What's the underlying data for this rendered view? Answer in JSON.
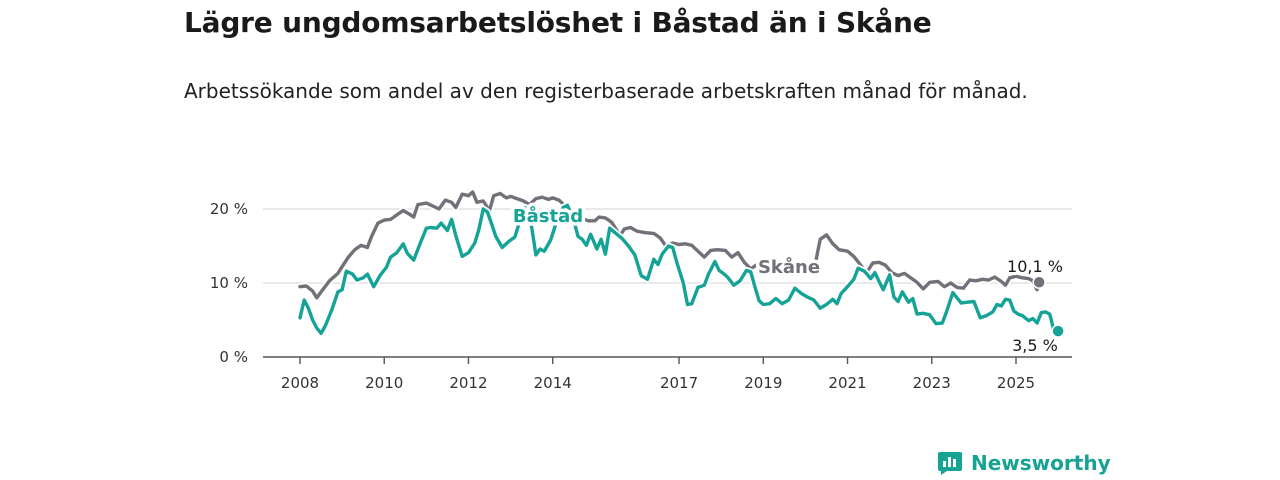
{
  "header": {
    "title": "Lägre ungdomsarbetslöshet i Båstad än i Skåne",
    "subtitle": "Arbetssökande som andel av den registerbaserade arbetskraften månad för månad."
  },
  "brand": {
    "name": "Newsworthy",
    "icon": "bar-chart-bubble-icon",
    "color": "#16a394"
  },
  "chart_data": {
    "type": "line",
    "title": "Lägre ungdomsarbetslöshet i Båstad än i Skåne",
    "subtitle": "Arbetssökande som andel av den registerbaserade arbetskraften månad för månad.",
    "xlabel": "",
    "ylabel": "",
    "x_range": [
      2007.5,
      2026.4
    ],
    "ylim": [
      0,
      20
    ],
    "y_ticks": [
      0,
      10,
      20
    ],
    "y_tick_labels": [
      "0 %",
      "10 %",
      "20 %"
    ],
    "x_ticks": [
      2008,
      2010,
      2012,
      2014,
      2017,
      2019,
      2021,
      2023,
      2025
    ],
    "x_tick_labels": [
      "2008",
      "2010",
      "2012",
      "2014",
      "2017",
      "2019",
      "2021",
      "2023",
      "2025"
    ],
    "grid": "horizontal",
    "legend": "direct labels on lines",
    "series": [
      {
        "name": "Skåne",
        "color": "#727078",
        "end_label": "10,1 %",
        "points": [
          [
            2008.0,
            9.5
          ],
          [
            2008.15,
            9.6
          ],
          [
            2008.3,
            8.9
          ],
          [
            2008.4,
            8.0
          ],
          [
            2008.5,
            8.8
          ],
          [
            2008.7,
            10.3
          ],
          [
            2008.9,
            11.3
          ],
          [
            2009.0,
            12.2
          ],
          [
            2009.15,
            13.5
          ],
          [
            2009.3,
            14.5
          ],
          [
            2009.45,
            15.1
          ],
          [
            2009.6,
            14.8
          ],
          [
            2009.7,
            16.3
          ],
          [
            2009.85,
            18.1
          ],
          [
            2010.0,
            18.5
          ],
          [
            2010.15,
            18.6
          ],
          [
            2010.3,
            19.2
          ],
          [
            2010.45,
            19.8
          ],
          [
            2010.6,
            19.3
          ],
          [
            2010.7,
            18.9
          ],
          [
            2010.8,
            20.6
          ],
          [
            2011.0,
            20.8
          ],
          [
            2011.15,
            20.4
          ],
          [
            2011.3,
            20.0
          ],
          [
            2011.45,
            21.2
          ],
          [
            2011.6,
            20.9
          ],
          [
            2011.7,
            20.2
          ],
          [
            2011.85,
            22.0
          ],
          [
            2012.0,
            21.8
          ],
          [
            2012.1,
            22.3
          ],
          [
            2012.2,
            20.9
          ],
          [
            2012.35,
            21.1
          ],
          [
            2012.5,
            19.8
          ],
          [
            2012.6,
            21.8
          ],
          [
            2012.75,
            22.1
          ],
          [
            2012.9,
            21.5
          ],
          [
            2013.0,
            21.7
          ],
          [
            2013.15,
            21.4
          ],
          [
            2013.3,
            21.1
          ],
          [
            2013.45,
            20.6
          ],
          [
            2013.6,
            21.4
          ],
          [
            2013.75,
            21.6
          ],
          [
            2013.9,
            21.3
          ],
          [
            2014.0,
            21.5
          ],
          [
            2014.15,
            21.2
          ],
          [
            2014.3,
            20.4
          ],
          [
            2014.45,
            19.6
          ],
          [
            2014.6,
            19.3
          ],
          [
            2014.7,
            18.7
          ],
          [
            2014.85,
            18.4
          ],
          [
            2015.0,
            18.4
          ],
          [
            2015.1,
            18.9
          ],
          [
            2015.25,
            18.8
          ],
          [
            2015.4,
            18.2
          ],
          [
            2015.6,
            16.4
          ],
          [
            2015.7,
            17.3
          ],
          [
            2015.85,
            17.5
          ],
          [
            2016.0,
            17.0
          ],
          [
            2016.2,
            16.8
          ],
          [
            2016.4,
            16.7
          ],
          [
            2016.55,
            16.1
          ],
          [
            2016.7,
            14.9
          ],
          [
            2016.85,
            15.4
          ],
          [
            2017.0,
            15.2
          ],
          [
            2017.15,
            15.3
          ],
          [
            2017.3,
            15.1
          ],
          [
            2017.45,
            14.3
          ],
          [
            2017.6,
            13.5
          ],
          [
            2017.75,
            14.4
          ],
          [
            2017.9,
            14.5
          ],
          [
            2018.1,
            14.4
          ],
          [
            2018.25,
            13.5
          ],
          [
            2018.4,
            14.1
          ],
          [
            2018.55,
            12.8
          ],
          [
            2018.7,
            11.9
          ],
          [
            2018.85,
            12.5
          ],
          [
            2019.0,
            12.3
          ],
          [
            2019.1,
            11.8
          ],
          [
            2019.25,
            12.6
          ],
          [
            2019.4,
            12.2
          ],
          [
            2019.6,
            11.6
          ],
          [
            2019.75,
            11.9
          ],
          [
            2019.9,
            11.8
          ],
          [
            2020.0,
            11.6
          ],
          [
            2020.15,
            11.7
          ],
          [
            2020.25,
            13.0
          ],
          [
            2020.35,
            15.9
          ],
          [
            2020.5,
            16.5
          ],
          [
            2020.65,
            15.3
          ],
          [
            2020.8,
            14.5
          ],
          [
            2021.0,
            14.3
          ],
          [
            2021.15,
            13.6
          ],
          [
            2021.3,
            12.5
          ],
          [
            2021.45,
            11.4
          ],
          [
            2021.6,
            12.7
          ],
          [
            2021.75,
            12.8
          ],
          [
            2021.9,
            12.4
          ],
          [
            2022.05,
            11.4
          ],
          [
            2022.2,
            11.0
          ],
          [
            2022.35,
            11.3
          ],
          [
            2022.5,
            10.7
          ],
          [
            2022.65,
            10.1
          ],
          [
            2022.8,
            9.2
          ],
          [
            2022.95,
            10.1
          ],
          [
            2023.15,
            10.2
          ],
          [
            2023.3,
            9.5
          ],
          [
            2023.45,
            10.0
          ],
          [
            2023.6,
            9.4
          ],
          [
            2023.75,
            9.3
          ],
          [
            2023.9,
            10.4
          ],
          [
            2024.05,
            10.3
          ],
          [
            2024.2,
            10.5
          ],
          [
            2024.35,
            10.4
          ],
          [
            2024.5,
            10.8
          ],
          [
            2024.65,
            10.2
          ],
          [
            2024.75,
            9.7
          ],
          [
            2024.85,
            10.7
          ],
          [
            2025.0,
            10.9
          ],
          [
            2025.15,
            10.7
          ],
          [
            2025.3,
            10.6
          ],
          [
            2025.4,
            10.3
          ],
          [
            2025.5,
            9.1
          ],
          [
            2025.55,
            10.1
          ]
        ]
      },
      {
        "name": "Båstad",
        "color": "#14a396",
        "end_label": "3,5 %",
        "points": [
          [
            2008.0,
            5.3
          ],
          [
            2008.1,
            7.7
          ],
          [
            2008.2,
            6.6
          ],
          [
            2008.3,
            5.0
          ],
          [
            2008.4,
            3.9
          ],
          [
            2008.5,
            3.2
          ],
          [
            2008.6,
            4.2
          ],
          [
            2008.75,
            6.3
          ],
          [
            2008.9,
            8.8
          ],
          [
            2009.0,
            9.1
          ],
          [
            2009.1,
            11.6
          ],
          [
            2009.25,
            11.2
          ],
          [
            2009.35,
            10.4
          ],
          [
            2009.5,
            10.7
          ],
          [
            2009.6,
            11.2
          ],
          [
            2009.75,
            9.5
          ],
          [
            2009.9,
            11.0
          ],
          [
            2010.05,
            12.1
          ],
          [
            2010.15,
            13.5
          ],
          [
            2010.3,
            14.1
          ],
          [
            2010.45,
            15.3
          ],
          [
            2010.55,
            14.0
          ],
          [
            2010.7,
            13.1
          ],
          [
            2010.85,
            15.3
          ],
          [
            2011.0,
            17.4
          ],
          [
            2011.1,
            17.5
          ],
          [
            2011.25,
            17.4
          ],
          [
            2011.35,
            18.1
          ],
          [
            2011.5,
            17.1
          ],
          [
            2011.6,
            18.6
          ],
          [
            2011.7,
            16.4
          ],
          [
            2011.85,
            13.6
          ],
          [
            2012.0,
            14.1
          ],
          [
            2012.15,
            15.4
          ],
          [
            2012.25,
            17.3
          ],
          [
            2012.35,
            20.0
          ],
          [
            2012.45,
            19.6
          ],
          [
            2012.55,
            18.0
          ],
          [
            2012.65,
            16.3
          ],
          [
            2012.8,
            14.8
          ],
          [
            2012.95,
            15.6
          ],
          [
            2013.1,
            16.2
          ],
          [
            2013.25,
            18.9
          ],
          [
            2013.35,
            20.2
          ],
          [
            2013.5,
            17.6
          ],
          [
            2013.6,
            13.8
          ],
          [
            2013.7,
            14.6
          ],
          [
            2013.8,
            14.3
          ],
          [
            2013.95,
            15.8
          ],
          [
            2014.1,
            18.4
          ],
          [
            2014.25,
            20.2
          ],
          [
            2014.35,
            20.5
          ],
          [
            2014.5,
            18.5
          ],
          [
            2014.6,
            16.3
          ],
          [
            2014.7,
            15.9
          ],
          [
            2014.8,
            15.1
          ],
          [
            2014.9,
            16.6
          ],
          [
            2015.05,
            14.6
          ],
          [
            2015.15,
            15.9
          ],
          [
            2015.25,
            13.9
          ],
          [
            2015.35,
            17.4
          ],
          [
            2015.5,
            16.7
          ],
          [
            2015.65,
            16.0
          ],
          [
            2015.8,
            15.0
          ],
          [
            2015.95,
            13.8
          ],
          [
            2016.1,
            11.0
          ],
          [
            2016.25,
            10.5
          ],
          [
            2016.4,
            13.2
          ],
          [
            2016.5,
            12.5
          ],
          [
            2016.6,
            13.9
          ],
          [
            2016.75,
            15.0
          ],
          [
            2016.85,
            14.8
          ],
          [
            2016.95,
            12.7
          ],
          [
            2017.1,
            10.0
          ],
          [
            2017.2,
            7.1
          ],
          [
            2017.3,
            7.2
          ],
          [
            2017.45,
            9.4
          ],
          [
            2017.6,
            9.7
          ],
          [
            2017.7,
            11.2
          ],
          [
            2017.85,
            12.9
          ],
          [
            2017.95,
            11.7
          ],
          [
            2018.05,
            11.3
          ],
          [
            2018.15,
            10.8
          ],
          [
            2018.3,
            9.7
          ],
          [
            2018.45,
            10.3
          ],
          [
            2018.6,
            11.7
          ],
          [
            2018.7,
            11.5
          ],
          [
            2018.8,
            9.5
          ],
          [
            2018.9,
            7.6
          ],
          [
            2019.0,
            7.1
          ],
          [
            2019.15,
            7.2
          ],
          [
            2019.3,
            7.9
          ],
          [
            2019.45,
            7.2
          ],
          [
            2019.6,
            7.7
          ],
          [
            2019.75,
            9.3
          ],
          [
            2019.9,
            8.6
          ],
          [
            2020.05,
            8.1
          ],
          [
            2020.2,
            7.7
          ],
          [
            2020.35,
            6.6
          ],
          [
            2020.5,
            7.1
          ],
          [
            2020.65,
            7.8
          ],
          [
            2020.75,
            7.2
          ],
          [
            2020.85,
            8.6
          ],
          [
            2021.0,
            9.5
          ],
          [
            2021.15,
            10.5
          ],
          [
            2021.25,
            12.0
          ],
          [
            2021.4,
            11.6
          ],
          [
            2021.55,
            10.6
          ],
          [
            2021.65,
            11.4
          ],
          [
            2021.75,
            10.2
          ],
          [
            2021.85,
            9.1
          ],
          [
            2022.0,
            11.1
          ],
          [
            2022.1,
            8.1
          ],
          [
            2022.2,
            7.5
          ],
          [
            2022.3,
            8.8
          ],
          [
            2022.45,
            7.4
          ],
          [
            2022.55,
            7.9
          ],
          [
            2022.65,
            5.8
          ],
          [
            2022.8,
            5.9
          ],
          [
            2022.95,
            5.7
          ],
          [
            2023.1,
            4.5
          ],
          [
            2023.25,
            4.6
          ],
          [
            2023.35,
            6.1
          ],
          [
            2023.5,
            8.7
          ],
          [
            2023.6,
            8.0
          ],
          [
            2023.7,
            7.3
          ],
          [
            2023.85,
            7.4
          ],
          [
            2024.0,
            7.5
          ],
          [
            2024.15,
            5.3
          ],
          [
            2024.3,
            5.6
          ],
          [
            2024.45,
            6.1
          ],
          [
            2024.55,
            7.1
          ],
          [
            2024.65,
            6.9
          ],
          [
            2024.75,
            7.8
          ],
          [
            2024.85,
            7.7
          ],
          [
            2024.95,
            6.2
          ],
          [
            2025.05,
            5.8
          ],
          [
            2025.15,
            5.6
          ],
          [
            2025.3,
            4.9
          ],
          [
            2025.4,
            5.2
          ],
          [
            2025.5,
            4.6
          ],
          [
            2025.6,
            6.0
          ],
          [
            2025.7,
            6.1
          ],
          [
            2025.8,
            5.8
          ],
          [
            2025.9,
            3.6
          ],
          [
            2026.0,
            3.5
          ]
        ]
      }
    ]
  }
}
